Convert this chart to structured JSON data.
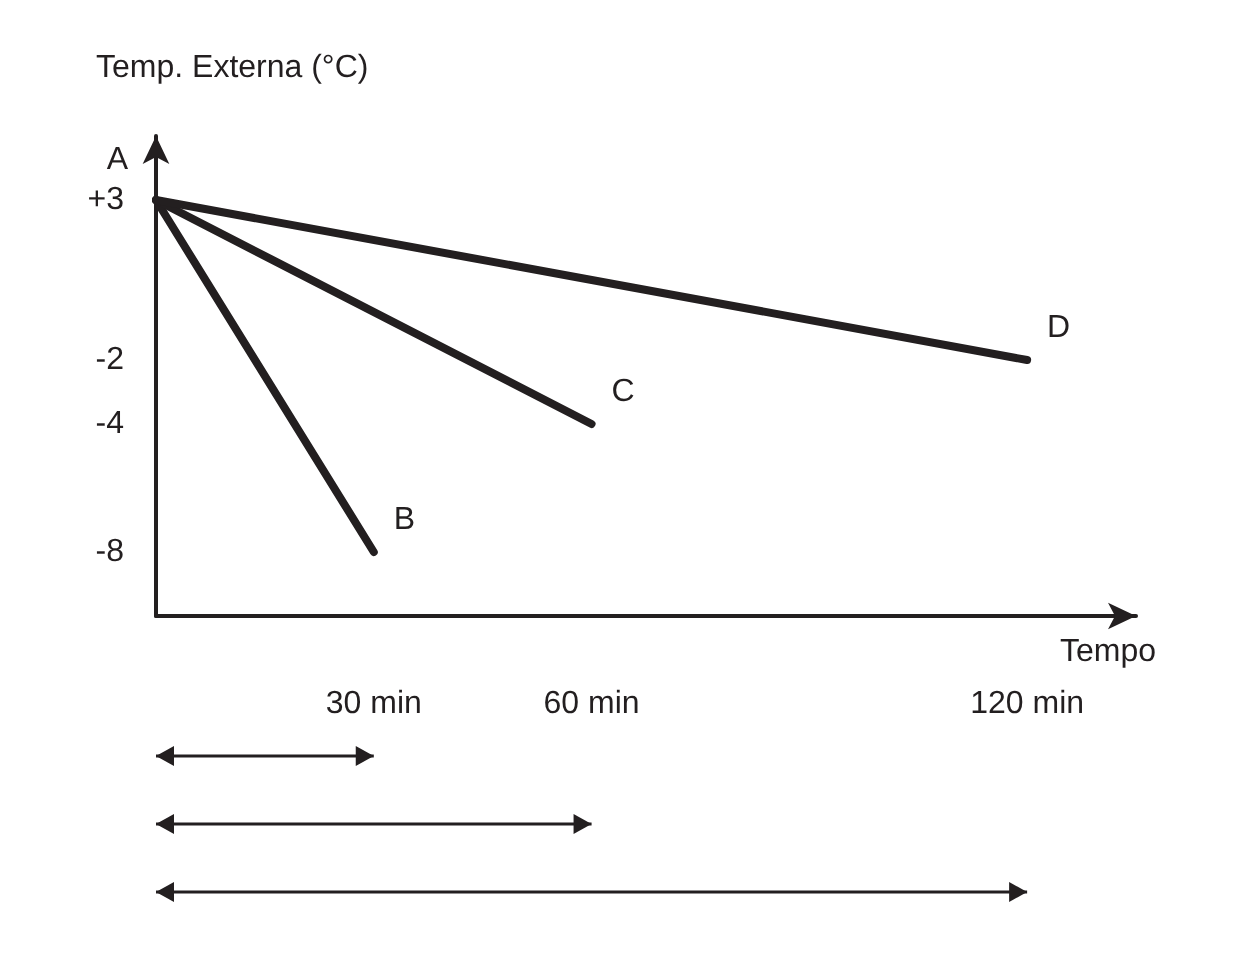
{
  "chart_data": {
    "type": "line",
    "ylabel": "Temp. Externa (°C)",
    "xlabel": "Tempo",
    "series": [
      {
        "color": "#231f20",
        "x": [
          0,
          30
        ],
        "values": [
          3,
          -8
        ]
      },
      {
        "color": "#231f20",
        "x": [
          0,
          60
        ],
        "values": [
          3,
          -4
        ]
      },
      {
        "color": "#231f20",
        "x": [
          0,
          120
        ],
        "values": [
          3,
          -2
        ]
      }
    ],
    "xlim": [
      0,
      135
    ],
    "ylim": [
      -10,
      5
    ],
    "xticks": [
      {
        "value": 30,
        "label": "30 min"
      },
      {
        "value": 60,
        "label": "60 min"
      },
      {
        "value": 120,
        "label": "120 min"
      }
    ],
    "yticks": [
      {
        "value": 3,
        "label": "+3"
      },
      {
        "value": -2,
        "label": "-2"
      },
      {
        "value": -4,
        "label": "-4"
      },
      {
        "value": -8,
        "label": "-8"
      }
    ],
    "grid": false,
    "marker": "none",
    "annotations": [
      {
        "text": "A",
        "x": 0,
        "y": 3
      },
      {
        "text": "B",
        "x": 30,
        "y": -8
      },
      {
        "text": "C",
        "x": 60,
        "y": -4
      },
      {
        "text": "D",
        "x": 120,
        "y": -2
      }
    ]
  }
}
